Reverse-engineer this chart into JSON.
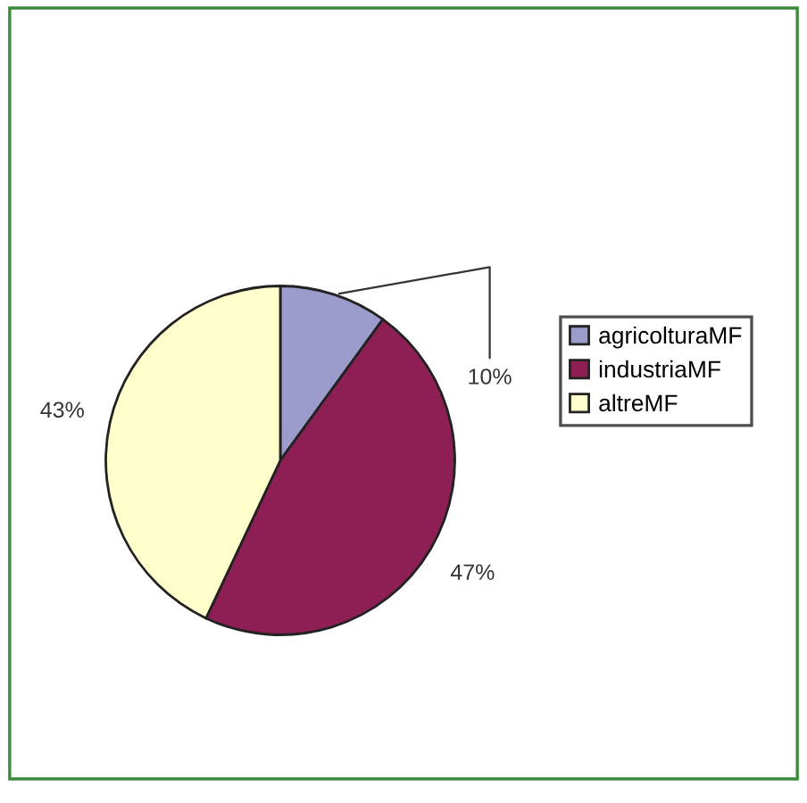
{
  "chart_data": {
    "type": "pie",
    "categories": [
      "agricolturaMF",
      "industriaMF",
      "altreMF"
    ],
    "values": [
      10,
      47,
      43
    ],
    "colors": [
      "#9c9ccc",
      "#8e1f55",
      "#ffffcc"
    ],
    "value_labels": [
      "10%",
      "47%",
      "43%"
    ],
    "legend": "right"
  }
}
